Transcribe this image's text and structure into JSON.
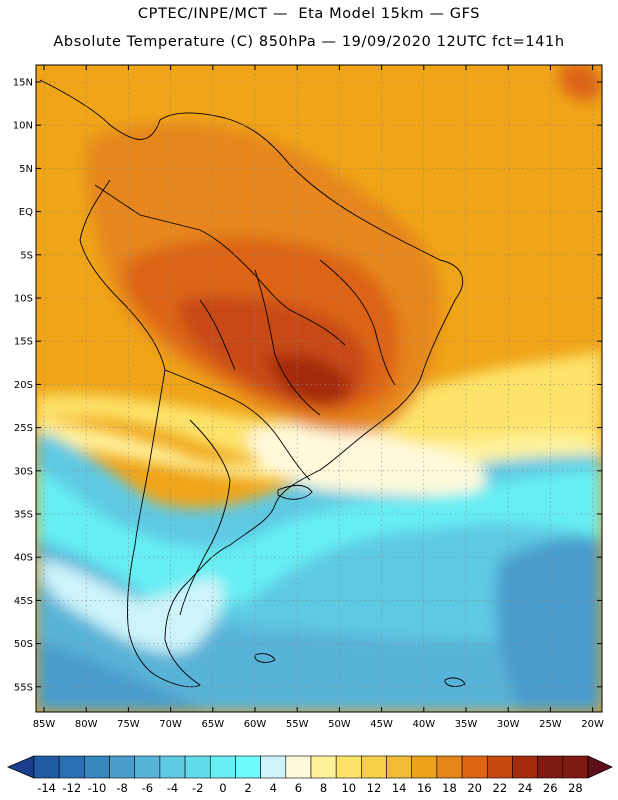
{
  "title_line1": "CPTEC/INPE/MCT —  Eta Model 15km — GFS",
  "title_line2": "Absolute Temperature (C) 850hPa — 19/09/2020 12UTC fct=141h",
  "lat_labels": [
    "15N",
    "10N",
    "5N",
    "EQ",
    "5S",
    "10S",
    "15S",
    "20S",
    "25S",
    "30S",
    "35S",
    "40S",
    "45S",
    "50S",
    "55S"
  ],
  "lon_labels": [
    "85W",
    "80W",
    "75W",
    "70W",
    "65W",
    "60W",
    "55W",
    "50W",
    "45W",
    "40W",
    "35W",
    "30W",
    "25W",
    "20W"
  ],
  "colorbar": {
    "labels": [
      "-14",
      "-12",
      "-10",
      "-8",
      "-6",
      "-4",
      "-2",
      "0",
      "2",
      "4",
      "6",
      "8",
      "10",
      "12",
      "14",
      "16",
      "18",
      "20",
      "22",
      "24",
      "26",
      "28"
    ],
    "colors": [
      "#1a3f8e",
      "#1f5aa2",
      "#2a6fb1",
      "#3787bf",
      "#4a9ccc",
      "#58b3d8",
      "#5fc9e3",
      "#60dcea",
      "#66eef4",
      "#6cfcfb",
      "#cef4fa",
      "#fff9dc",
      "#fff29b",
      "#fde36a",
      "#f7cf4a",
      "#f2bb35",
      "#eda21c",
      "#e6861a",
      "#dd6412",
      "#c84812",
      "#a62c10",
      "#7d1b10",
      "#5e0f1a"
    ]
  },
  "map": {
    "region_lon": [
      -85,
      -20
    ],
    "region_lat": [
      -57,
      16
    ],
    "background_color": "#f0a418",
    "regions": [
      {
        "name": "north-atlantic-warm",
        "color": "#eda21c"
      },
      {
        "name": "amazon-hot",
        "color": "#e6861a"
      },
      {
        "name": "central-brazil-very-hot",
        "color": "#dd6412"
      },
      {
        "name": "chaco-core",
        "color": "#c84812"
      },
      {
        "name": "south-atlantic-cool",
        "color": "#5fc9e3"
      },
      {
        "name": "southern-ocean",
        "color": "#58b3d8"
      },
      {
        "name": "patagonia-pale",
        "color": "#cef4fa"
      }
    ]
  }
}
